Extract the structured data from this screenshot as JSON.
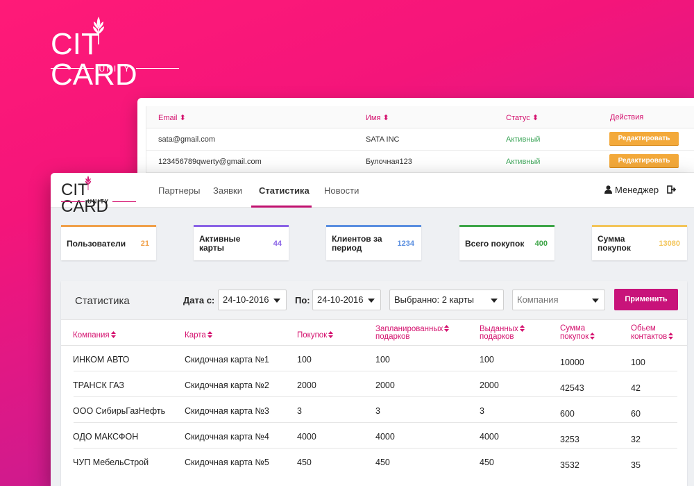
{
  "brand": {
    "name_left": "CIT",
    "name_right": "CARD",
    "sub": "UNITY"
  },
  "back_table": {
    "headers": {
      "email": "Email",
      "name": "Имя",
      "status": "Статус",
      "actions": "Действия"
    },
    "rows": [
      {
        "email": "sata@gmail.com",
        "name": "SATA INC",
        "status": "Активный",
        "action": "Редактировать"
      },
      {
        "email": "123456789qwerty@gmail.com",
        "name": "Булочная123",
        "status": "Активный",
        "action": "Редактировать"
      }
    ]
  },
  "nav": {
    "items": [
      {
        "label": "Партнеры"
      },
      {
        "label": "Заявки"
      },
      {
        "label": "Статистика"
      },
      {
        "label": "Новости"
      }
    ],
    "active": "Статистика",
    "user": "Менеджер"
  },
  "stat_cards": [
    {
      "label": "Пользователи",
      "value": "21",
      "color": "#f0a14b"
    },
    {
      "label": "Активные карты",
      "value": "44",
      "color": "#8a63e6"
    },
    {
      "label": "Клиентов за период",
      "value": "1234",
      "color": "#5b8fe0"
    },
    {
      "label": "Всего покупок",
      "value": "400",
      "color": "#3ea548"
    },
    {
      "label": "Сумма покупок",
      "value": "13080",
      "color": "#f3c55a"
    }
  ],
  "filters": {
    "title": "Статистика",
    "date_from_label": "Дата с:",
    "date_from": "24-10-2016",
    "date_to_label": "По:",
    "date_to": "24-10-2016",
    "cards": "Выбранно: 2 карты",
    "company_placeholder": "Компания",
    "apply": "Применить"
  },
  "stats_table": {
    "headers": {
      "company": "Компания",
      "card": "Карта",
      "purchases": "Покупок",
      "planned_1": "Запланированных",
      "planned_2": "подарков",
      "issued_1": "Выданных",
      "issued_2": "подарков",
      "sum_1": "Сумма",
      "sum_2": "покупок",
      "volume_1": "Обьем",
      "volume_2": "контактов"
    },
    "rows": [
      {
        "company": "ИНКОМ АВТО",
        "card": "Скидочная карта №1",
        "purchases": "100",
        "planned": "100",
        "issued": "100",
        "sum": "10000",
        "volume": "100"
      },
      {
        "company": "ТРАНСК ГАЗ",
        "card": "Скидочная карта №2",
        "purchases": "2000",
        "planned": "2000",
        "issued": "2000",
        "sum": "42543",
        "volume": "42"
      },
      {
        "company": "ООО СибирьГазНефть",
        "card": "Скидочная карта №3",
        "purchases": "3",
        "planned": "3",
        "issued": "3",
        "sum": "600",
        "volume": "60"
      },
      {
        "company": "ОДО МАКСФОН",
        "card": "Скидочная карта №4",
        "purchases": "4000",
        "planned": "4000",
        "issued": "4000",
        "sum": "3253",
        "volume": "32"
      },
      {
        "company": "ЧУП МебельСтрой",
        "card": "Скидочная карта №5",
        "purchases": "450",
        "planned": "450",
        "issued": "450",
        "sum": "3532",
        "volume": "35"
      }
    ]
  }
}
